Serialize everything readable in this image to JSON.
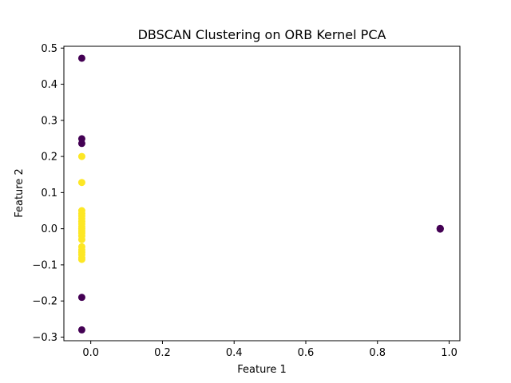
{
  "chart_data": {
    "type": "scatter",
    "title": "DBSCAN Clustering on ORB Kernel PCA",
    "xlabel": "Feature 1",
    "ylabel": "Feature 2",
    "xlim": [
      -0.075,
      1.03
    ],
    "ylim": [
      -0.31,
      0.505
    ],
    "x_ticks": [
      0.0,
      0.2,
      0.4,
      0.6,
      0.8,
      1.0
    ],
    "x_tick_labels": [
      "0.0",
      "0.2",
      "0.4",
      "0.6",
      "0.8",
      "1.0"
    ],
    "y_ticks": [
      -0.3,
      -0.2,
      -0.1,
      0.0,
      0.1,
      0.2,
      0.3,
      0.4,
      0.5
    ],
    "y_tick_labels": [
      "−0.3",
      "−0.2",
      "−0.1",
      "0.0",
      "0.1",
      "0.2",
      "0.3",
      "0.4",
      "0.5"
    ],
    "grid": false,
    "legend": "none",
    "series": [
      {
        "color": "#440154",
        "points": [
          [
            -0.025,
            0.472
          ],
          [
            -0.025,
            0.249
          ],
          [
            -0.025,
            0.236
          ],
          [
            -0.025,
            -0.19
          ],
          [
            -0.025,
            -0.28
          ],
          [
            0.975,
            0.0
          ],
          [
            0.975,
            0.001
          ],
          [
            0.975,
            -0.001
          ]
        ]
      },
      {
        "color": "#fde725",
        "points": [
          [
            -0.025,
            0.2
          ],
          [
            -0.025,
            0.128
          ],
          [
            -0.025,
            0.05
          ],
          [
            -0.025,
            0.042
          ],
          [
            -0.025,
            0.035
          ],
          [
            -0.025,
            0.028
          ],
          [
            -0.025,
            0.02
          ],
          [
            -0.025,
            0.013
          ],
          [
            -0.025,
            0.006
          ],
          [
            -0.025,
            0.0
          ],
          [
            -0.025,
            -0.006
          ],
          [
            -0.025,
            -0.012
          ],
          [
            -0.025,
            -0.02
          ],
          [
            -0.025,
            -0.03
          ],
          [
            -0.025,
            -0.05
          ],
          [
            -0.025,
            -0.058
          ],
          [
            -0.025,
            -0.065
          ],
          [
            -0.025,
            -0.072
          ],
          [
            -0.025,
            -0.08
          ],
          [
            -0.025,
            -0.085
          ]
        ]
      }
    ]
  }
}
